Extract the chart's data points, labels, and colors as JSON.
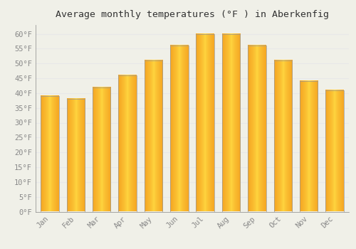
{
  "title": "Average monthly temperatures (°F ) in Aberkenfig",
  "months": [
    "Jan",
    "Feb",
    "Mar",
    "Apr",
    "May",
    "Jun",
    "Jul",
    "Aug",
    "Sep",
    "Oct",
    "Nov",
    "Dec"
  ],
  "values": [
    39,
    38,
    42,
    46,
    51,
    56,
    60,
    60,
    56,
    51,
    44,
    41
  ],
  "bar_color_center": "#FFD740",
  "bar_color_edge": "#F5A623",
  "bar_edge_color": "#999999",
  "ylim": [
    0,
    63
  ],
  "yticks": [
    0,
    5,
    10,
    15,
    20,
    25,
    30,
    35,
    40,
    45,
    50,
    55,
    60
  ],
  "ylabel_suffix": "°F",
  "background_color": "#f0f0e8",
  "grid_color": "#e8e8e8",
  "title_fontsize": 9.5,
  "tick_fontsize": 7.5,
  "title_color": "#333333",
  "tick_color": "#888888",
  "bar_width": 0.7
}
